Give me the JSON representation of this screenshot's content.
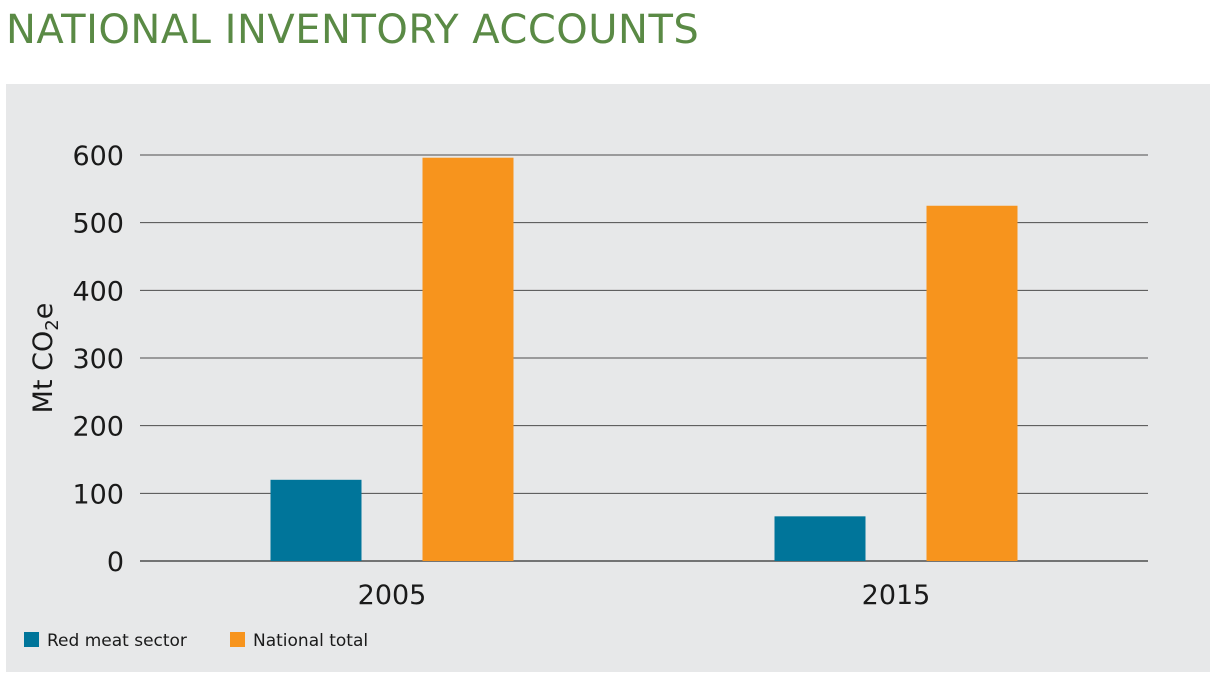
{
  "page": {
    "title": "NATIONAL INVENTORY ACCOUNTS"
  },
  "colors": {
    "title": "#5a8a45",
    "panel_bg": "#e7e8e9",
    "grid": "#4d4d4d"
  },
  "chart_data": {
    "type": "bar",
    "title": "",
    "xlabel": "",
    "ylabel": "Mt CO",
    "ylabel_subscript": "2",
    "ylabel_suffix": "e",
    "ylim": [
      0,
      600
    ],
    "yticks": [
      0,
      100,
      200,
      300,
      400,
      500,
      600
    ],
    "grid": true,
    "legend_position": "bottom-left",
    "categories": [
      "2005",
      "2015"
    ],
    "series": [
      {
        "name": "Red meat sector",
        "color": "#00759a",
        "values": [
          120,
          66
        ]
      },
      {
        "name": "National total",
        "color": "#f7941d",
        "values": [
          596,
          525
        ]
      }
    ]
  }
}
